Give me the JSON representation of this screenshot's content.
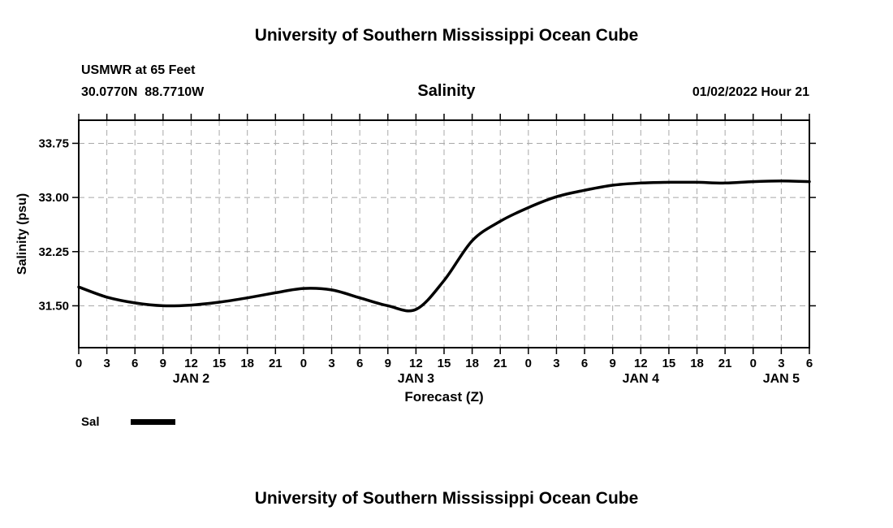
{
  "header": {
    "top_title": "University of Southern Mississippi Ocean Cube",
    "station": "USMWR at 65 Feet",
    "coordinates": "30.0770N  88.7710W",
    "datetime": "01/02/2022 Hour 21"
  },
  "footer": {
    "bottom_title": "University of Southern Mississippi Ocean Cube"
  },
  "chart_data": {
    "type": "line",
    "title": "Salinity",
    "xlabel": "Forecast (Z)",
    "ylabel": "Salinity (psu)",
    "xlim": [
      0,
      78
    ],
    "ylim": [
      30.92,
      34.07
    ],
    "yticks": [
      31.5,
      32.25,
      33.0,
      33.75
    ],
    "ytick_labels": [
      "31.50",
      "32.25",
      "33.00",
      "33.75"
    ],
    "x_hours": [
      0,
      3,
      6,
      9,
      12,
      15,
      18,
      21,
      24,
      27,
      30,
      33,
      36,
      39,
      42,
      45,
      48,
      51,
      54,
      57,
      60,
      63,
      66,
      69,
      72,
      75,
      78
    ],
    "xtick_labels": [
      "0",
      "3",
      "6",
      "9",
      "12",
      "15",
      "18",
      "21",
      "0",
      "3",
      "6",
      "9",
      "12",
      "15",
      "18",
      "21",
      "0",
      "3",
      "6",
      "9",
      "12",
      "15",
      "18",
      "21",
      "0",
      "3",
      "6"
    ],
    "day_labels": [
      {
        "label": "JAN 2",
        "hour": 12
      },
      {
        "label": "JAN 3",
        "hour": 36
      },
      {
        "label": "JAN 4",
        "hour": 60
      },
      {
        "label": "JAN 5",
        "hour": 75
      }
    ],
    "grid": "dashed",
    "legend_position": "bottom-left",
    "series": [
      {
        "name": "Sal",
        "color": "#000000",
        "x": [
          0,
          3,
          6,
          9,
          12,
          15,
          18,
          21,
          24,
          27,
          30,
          33,
          36,
          39,
          42,
          45,
          48,
          51,
          54,
          57,
          60,
          63,
          66,
          69,
          72,
          75,
          78
        ],
        "values": [
          31.76,
          31.62,
          31.54,
          31.5,
          31.51,
          31.55,
          31.61,
          31.68,
          31.74,
          31.72,
          31.61,
          31.5,
          31.45,
          31.85,
          32.4,
          32.67,
          32.86,
          33.01,
          33.1,
          33.17,
          33.2,
          33.21,
          33.21,
          33.2,
          33.22,
          33.23,
          33.22
        ]
      }
    ]
  }
}
